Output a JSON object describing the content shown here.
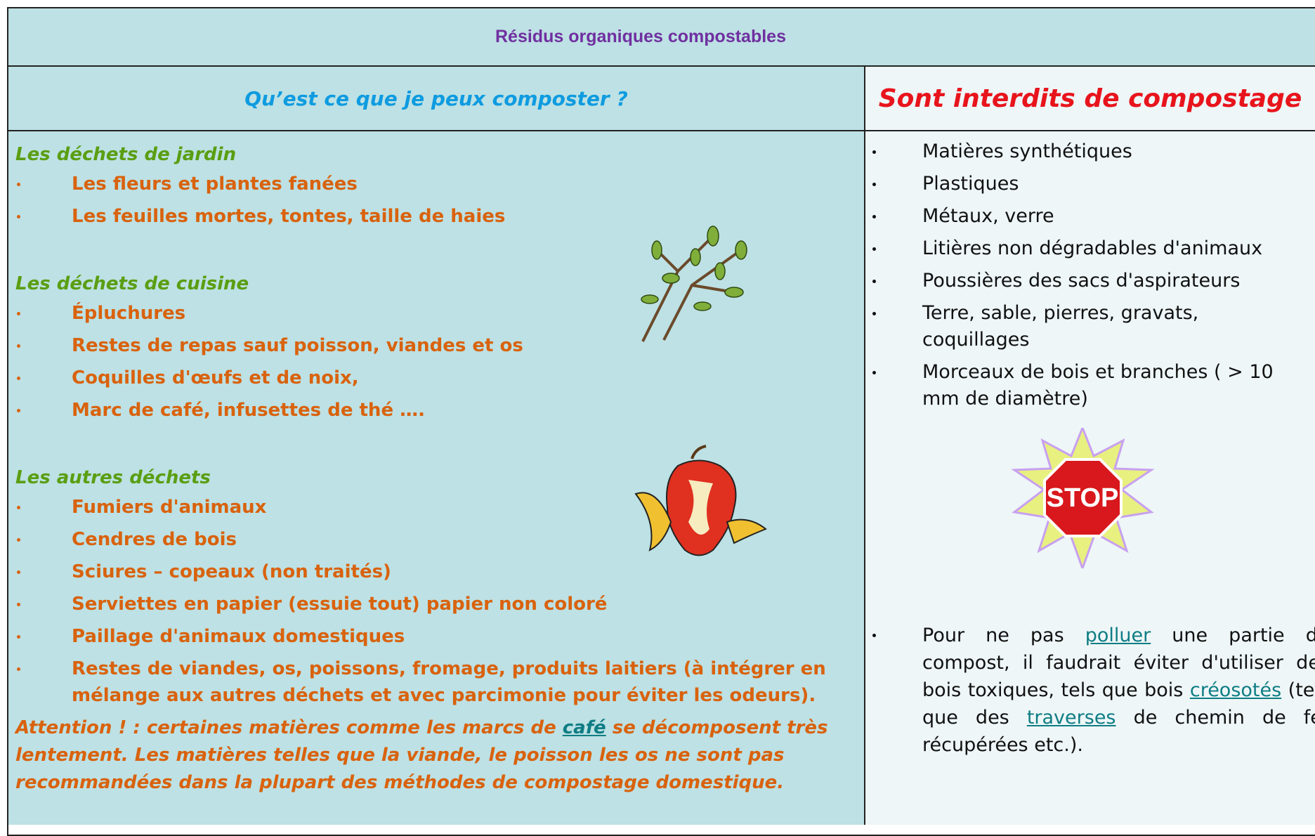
{
  "title": "Résidus organiques compostables",
  "left": {
    "header": "Qu’est ce que je peux composter ?",
    "sections": [
      {
        "heading": "Les déchets de jardin",
        "items": [
          "Les fleurs et plantes fanées",
          "Les feuilles mortes, tontes, taille de haies"
        ]
      },
      {
        "heading": "Les déchets de cuisine",
        "items": [
          "Épluchures",
          "Restes de repas sauf  poisson, viandes et os",
          "Coquilles d'œufs et de noix,",
          "Marc de café, infusettes de thé …."
        ]
      },
      {
        "heading": "Les autres déchets",
        "items": [
          "Fumiers d'animaux",
          "Cendres de bois",
          "Sciures – copeaux  (non traités)",
          "Serviettes en papier  (essuie tout) papier non coloré",
          "Paillage d'animaux domestiques",
          "Restes de viandes, os, poissons, fromage, produits laitiers (à intégrer en mélange aux autres déchets et avec parcimonie pour éviter les odeurs)."
        ]
      }
    ],
    "note": [
      "Attention ! : certaines matières comme les marcs de ",
      "café",
      " se décomposent très lentement. Les matières telles que la viande, le poisson les os ne sont pas recommandées dans la plupart des méthodes de compostage domestique."
    ]
  },
  "right": {
    "header": "Sont interdits de compostage",
    "items": [
      "Matières synthétiques",
      "Plastiques",
      "Métaux, verre",
      "Litières non dégradables d'animaux",
      "Poussières des sacs d'aspirateurs",
      "Terre, sable, pierres, gravats, coquillages",
      "Morceaux de bois et branches ( > 10 mm de diamètre)"
    ],
    "stop_sign": "STOP",
    "note": [
      "Pour ne pas ",
      "polluer",
      " une partie du compost, il faudrait éviter d'utiliser des bois toxiques, tels que bois ",
      "créosotés",
      " (tels que des ",
      "traverses",
      " de chemin de fer récupérées etc.)."
    ]
  }
}
